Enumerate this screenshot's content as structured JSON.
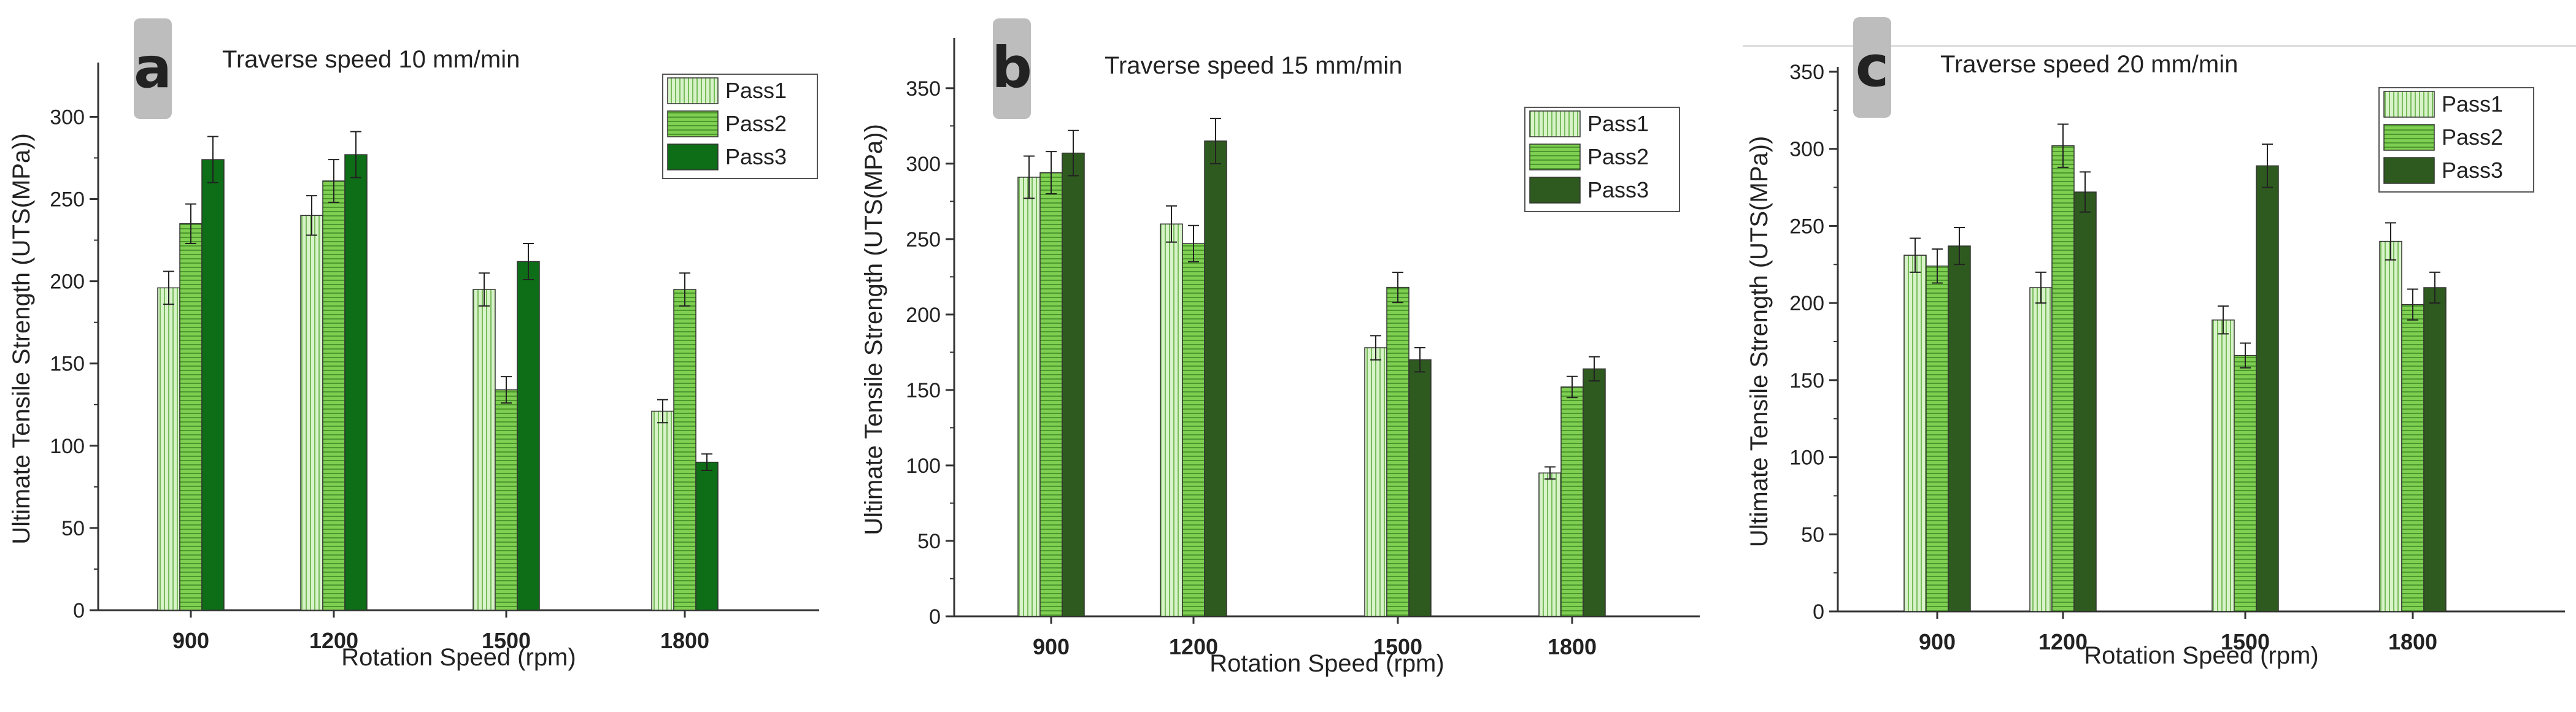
{
  "chart_data": [
    {
      "type": "bar",
      "panel_label": "a",
      "title": "Traverse speed 10 mm/min",
      "xlabel": "Rotation Speed (rpm)",
      "ylabel": "Ultimate Tensile Strength (UTS(MPa))",
      "ylim": [
        0,
        330
      ],
      "yticks": [
        0,
        50,
        100,
        150,
        200,
        250,
        300
      ],
      "categories": [
        "900",
        "1200",
        "1500",
        "1800"
      ],
      "legend_position": "top-right",
      "series": [
        {
          "name": "Pass1",
          "values": [
            196,
            240,
            195,
            121
          ],
          "errors": [
            10,
            12,
            10,
            7
          ],
          "color": "#cdeebc",
          "pattern": "vertical"
        },
        {
          "name": "Pass2",
          "values": [
            235,
            261,
            134,
            195
          ],
          "errors": [
            12,
            13,
            8,
            10
          ],
          "color": "#84d05a",
          "pattern": "horizontal"
        },
        {
          "name": "Pass3",
          "values": [
            274,
            277,
            212,
            90
          ],
          "errors": [
            14,
            14,
            11,
            5
          ],
          "color": "#0e6d17",
          "pattern": "solid"
        }
      ]
    },
    {
      "type": "bar",
      "panel_label": "b",
      "title": "Traverse speed 15 mm/min",
      "xlabel": "Rotation Speed (rpm)",
      "ylabel": "Ultimate Tensile Strength (UTS(MPa))",
      "ylim": [
        0,
        380
      ],
      "yticks": [
        0,
        50,
        100,
        150,
        200,
        250,
        300,
        350
      ],
      "categories": [
        "900",
        "1200",
        "1500",
        "1800"
      ],
      "legend_position": "top-right",
      "series": [
        {
          "name": "Pass1",
          "values": [
            291,
            260,
            178,
            95
          ],
          "errors": [
            14,
            12,
            8,
            4
          ],
          "color": "#cdeebc",
          "pattern": "vertical"
        },
        {
          "name": "Pass2",
          "values": [
            294,
            247,
            218,
            152
          ],
          "errors": [
            14,
            12,
            10,
            7
          ],
          "color": "#84d05a",
          "pattern": "horizontal"
        },
        {
          "name": "Pass3",
          "values": [
            307,
            315,
            170,
            164
          ],
          "errors": [
            15,
            15,
            8,
            8
          ],
          "color": "#2e5a1f",
          "pattern": "solid"
        }
      ]
    },
    {
      "type": "bar",
      "panel_label": "c",
      "title": "Traverse speed 20 mm/min",
      "xlabel": "Rotation Speed (rpm)",
      "ylabel": "Ultimate Tensile Strength (UTS(MPa))",
      "ylim": [
        0,
        350
      ],
      "yticks": [
        0,
        50,
        100,
        150,
        200,
        250,
        300,
        350
      ],
      "categories": [
        "900",
        "1200",
        "1500",
        "1800"
      ],
      "legend_position": "top-right",
      "series": [
        {
          "name": "Pass1",
          "values": [
            231,
            210,
            189,
            240
          ],
          "errors": [
            11,
            10,
            9,
            12
          ],
          "color": "#cdeebc",
          "pattern": "vertical"
        },
        {
          "name": "Pass2",
          "values": [
            224,
            302,
            166,
            199
          ],
          "errors": [
            11,
            14,
            8,
            10
          ],
          "color": "#84d05a",
          "pattern": "horizontal"
        },
        {
          "name": "Pass3",
          "values": [
            237,
            272,
            289,
            210
          ],
          "errors": [
            12,
            13,
            14,
            10
          ],
          "color": "#2e5a1f",
          "pattern": "solid"
        }
      ]
    }
  ]
}
